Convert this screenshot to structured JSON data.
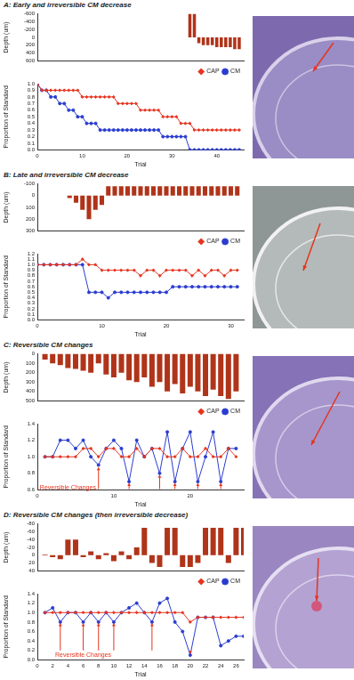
{
  "chart_data": [
    {
      "type": "bar",
      "title": "A: Early and irreversible CM decrease",
      "y_label": "Depth (um)",
      "x": [
        0,
        1,
        2,
        3,
        4,
        5,
        6,
        7,
        8,
        9,
        10,
        11,
        12,
        13,
        14,
        15,
        16,
        17,
        18,
        19,
        20,
        21,
        22,
        23,
        24,
        25,
        26,
        27,
        28,
        29,
        30,
        31,
        32,
        33,
        34,
        35,
        36,
        37,
        38,
        39,
        40,
        41,
        42,
        43,
        44,
        45
      ],
      "values": [
        0,
        0,
        0,
        0,
        0,
        0,
        0,
        0,
        0,
        0,
        0,
        0,
        0,
        0,
        0,
        0,
        0,
        0,
        0,
        0,
        0,
        0,
        0,
        0,
        0,
        0,
        0,
        0,
        0,
        0,
        0,
        0,
        0,
        0,
        -600,
        -600,
        150,
        200,
        200,
        200,
        250,
        250,
        250,
        250,
        300,
        300
      ],
      "color": "#b0341a",
      "xlim": [
        0,
        46
      ],
      "ylim": [
        600,
        -600
      ],
      "yticks": [
        -600,
        -400,
        -200,
        0,
        200,
        400,
        600
      ],
      "tick_labels": "y",
      "grid": false
    },
    {
      "type": "line",
      "x_label": "Trial",
      "y_label": "Proportion of Standard",
      "x": [
        0,
        1,
        2,
        3,
        4,
        5,
        6,
        7,
        8,
        9,
        10,
        11,
        12,
        13,
        14,
        15,
        16,
        17,
        18,
        19,
        20,
        21,
        22,
        23,
        24,
        25,
        26,
        27,
        28,
        29,
        30,
        31,
        32,
        33,
        34,
        35,
        36,
        37,
        38,
        39,
        40,
        41,
        42,
        43,
        44,
        45
      ],
      "series": [
        {
          "name": "CAP",
          "color": "#e5341f",
          "marker": "diamond",
          "values": [
            1,
            0.9,
            0.9,
            0.9,
            0.9,
            0.9,
            0.9,
            0.9,
            0.9,
            0.9,
            0.8,
            0.8,
            0.8,
            0.8,
            0.8,
            0.8,
            0.8,
            0.8,
            0.7,
            0.7,
            0.7,
            0.7,
            0.7,
            0.6,
            0.6,
            0.6,
            0.6,
            0.6,
            0.5,
            0.5,
            0.5,
            0.5,
            0.4,
            0.4,
            0.4,
            0.3,
            0.3,
            0.3,
            0.3,
            0.3,
            0.3,
            0.3,
            0.3,
            0.3,
            0.3,
            0.3
          ]
        },
        {
          "name": "CM",
          "color": "#2a3ccf",
          "marker": "circle",
          "values": [
            1,
            0.9,
            0.9,
            0.8,
            0.8,
            0.7,
            0.7,
            0.6,
            0.6,
            0.5,
            0.5,
            0.4,
            0.4,
            0.4,
            0.3,
            0.3,
            0.3,
            0.3,
            0.3,
            0.3,
            0.3,
            0.3,
            0.3,
            0.3,
            0.3,
            0.3,
            0.3,
            0.3,
            0.2,
            0.2,
            0.2,
            0.2,
            0.2,
            0.2,
            0,
            0,
            0,
            0,
            0,
            0,
            0,
            0,
            0,
            0,
            0,
            0
          ]
        }
      ],
      "xlim": [
        0,
        46
      ],
      "xticks": [
        0,
        10,
        20,
        30,
        40
      ],
      "ylim": [
        0,
        1
      ],
      "yticks": [
        {
          "value": 0,
          "label": "0.0"
        },
        0.1,
        0.2,
        0.3,
        0.4,
        0.5,
        0.6,
        0.7,
        0.8,
        0.9,
        {
          "value": 1,
          "label": "1.0"
        }
      ],
      "legend": "upper right",
      "grid": false
    },
    {
      "type": "bar",
      "title": "B: Late and irreversible CM decrease",
      "y_label": "Depth (um)",
      "x": [
        0,
        1,
        2,
        3,
        4,
        5,
        6,
        7,
        8,
        9,
        10,
        11,
        12,
        13,
        14,
        15,
        16,
        17,
        18,
        19,
        20,
        21,
        22,
        23,
        24,
        25,
        26,
        27,
        28,
        29,
        30,
        31
      ],
      "values": [
        0,
        0,
        0,
        0,
        0,
        20,
        60,
        120,
        200,
        120,
        80,
        -80,
        -80,
        -80,
        -80,
        -80,
        -80,
        -80,
        -80,
        -80,
        -80,
        -80,
        -80,
        -80,
        -80,
        -80,
        -80,
        -80,
        -80,
        -80,
        -80,
        -80
      ],
      "color": "#b0341a",
      "xlim": [
        0,
        32
      ],
      "ylim": [
        300,
        -100
      ],
      "yticks": [
        -100,
        0,
        100,
        200,
        300
      ],
      "tick_labels": "y",
      "grid": false
    },
    {
      "type": "line",
      "x_label": "Trial",
      "y_label": "Proportion of Standard",
      "x": [
        0,
        1,
        2,
        3,
        4,
        5,
        6,
        7,
        8,
        9,
        10,
        11,
        12,
        13,
        14,
        15,
        16,
        17,
        18,
        19,
        20,
        21,
        22,
        23,
        24,
        25,
        26,
        27,
        28,
        29,
        30,
        31
      ],
      "series": [
        {
          "name": "CAP",
          "color": "#e5341f",
          "marker": "diamond",
          "values": [
            1,
            1,
            1,
            1,
            1,
            1,
            1,
            1.1,
            1,
            1,
            0.9,
            0.9,
            0.9,
            0.9,
            0.9,
            0.9,
            0.8,
            0.9,
            0.9,
            0.8,
            0.9,
            0.9,
            0.9,
            0.9,
            0.8,
            0.9,
            0.8,
            0.9,
            0.9,
            0.8,
            0.9,
            0.9
          ]
        },
        {
          "name": "CM",
          "color": "#2a3ccf",
          "marker": "circle",
          "values": [
            1,
            1,
            1,
            1,
            1,
            1,
            1,
            1,
            0.5,
            0.5,
            0.5,
            0.4,
            0.5,
            0.5,
            0.5,
            0.5,
            0.5,
            0.5,
            0.5,
            0.5,
            0.5,
            0.6,
            0.6,
            0.6,
            0.6,
            0.6,
            0.6,
            0.6,
            0.6,
            0.6,
            0.6,
            0.6
          ]
        }
      ],
      "xlim": [
        0,
        32
      ],
      "xticks": [
        0,
        10,
        20,
        30
      ],
      "ylim": [
        0,
        1.2
      ],
      "yticks": [
        {
          "value": 0,
          "label": "0.0"
        },
        0.1,
        0.2,
        0.3,
        0.4,
        0.5,
        0.6,
        0.7,
        0.8,
        0.9,
        {
          "value": 1,
          "label": "1.0"
        },
        1.1,
        1.2
      ],
      "legend": "upper right",
      "grid": false
    },
    {
      "type": "bar",
      "title": "C: Reversible CM changes",
      "y_label": "Depth (um)",
      "x": [
        1,
        2,
        3,
        4,
        5,
        6,
        7,
        8,
        9,
        10,
        11,
        12,
        13,
        14,
        15,
        16,
        17,
        18,
        19,
        20,
        21,
        22,
        23,
        24,
        25,
        26
      ],
      "values": [
        60,
        100,
        120,
        150,
        160,
        180,
        200,
        100,
        220,
        250,
        200,
        280,
        300,
        250,
        350,
        300,
        400,
        320,
        420,
        350,
        400,
        450,
        380,
        450,
        480,
        400
      ],
      "color": "#b0341a",
      "xlim": [
        0,
        27
      ],
      "ylim": [
        500,
        0
      ],
      "yticks": [
        0,
        100,
        200,
        300,
        400,
        500
      ],
      "tick_labels": "y",
      "grid": false
    },
    {
      "type": "line",
      "x_label": "Trial",
      "y_label": "Proportion of Standard",
      "x": [
        1,
        2,
        3,
        4,
        5,
        6,
        7,
        8,
        9,
        10,
        11,
        12,
        13,
        14,
        15,
        16,
        17,
        18,
        19,
        20,
        21,
        22,
        23,
        24,
        25,
        26
      ],
      "series": [
        {
          "name": "CAP",
          "color": "#e5341f",
          "marker": "diamond",
          "values": [
            1,
            1,
            1,
            1,
            1,
            1.1,
            1.1,
            1,
            1.1,
            1.1,
            1,
            1,
            1.1,
            1,
            1.1,
            1.1,
            1,
            1,
            1.1,
            1,
            1,
            1.1,
            1,
            1,
            1.1,
            1
          ]
        },
        {
          "name": "CM",
          "color": "#2a3ccf",
          "marker": "circle",
          "values": [
            1,
            1,
            1.2,
            1.2,
            1.1,
            1.2,
            1,
            0.9,
            1.1,
            1.2,
            1.1,
            0.7,
            1.2,
            1,
            1.1,
            0.8,
            1.3,
            0.7,
            1.1,
            1.3,
            0.7,
            1,
            1.3,
            0.7,
            1.1,
            1.1
          ]
        }
      ],
      "xlim": [
        0,
        27
      ],
      "xticks": [
        0,
        10,
        20
      ],
      "ylim": [
        0.6,
        1.4
      ],
      "yticks": [
        0.6,
        0.8,
        {
          "value": 1,
          "label": "1.0"
        },
        1.2,
        1.4
      ],
      "legend": "upper right",
      "grid": false,
      "annotations": [
        {
          "text": "Reversible Changes",
          "color": "#e5341f",
          "x": 4,
          "y": 0.66,
          "arrows": [
            {
              "x": 8,
              "from": 0.61,
              "to": 0.87
            },
            {
              "x": 12,
              "from": 0.61,
              "to": 0.68
            },
            {
              "x": 16,
              "from": 0.61,
              "to": 0.78
            },
            {
              "x": 18,
              "from": 0.61,
              "to": 0.68
            },
            {
              "x": 21,
              "from": 0.61,
              "to": 0.68
            },
            {
              "x": 24,
              "from": 0.61,
              "to": 0.68
            }
          ]
        }
      ]
    },
    {
      "type": "bar",
      "title": "D: Reversible CM changes (then irreversible decrease)",
      "y_label": "Depth (um)",
      "x": [
        1,
        2,
        3,
        4,
        5,
        6,
        7,
        8,
        9,
        10,
        11,
        12,
        13,
        14,
        15,
        16,
        17,
        18,
        19,
        20,
        21,
        22,
        23,
        24,
        25,
        26,
        27
      ],
      "values": [
        -2,
        5,
        10,
        -40,
        -40,
        5,
        -10,
        10,
        -5,
        15,
        -10,
        10,
        -20,
        -70,
        20,
        30,
        -70,
        -70,
        30,
        30,
        20,
        -70,
        -70,
        -70,
        20,
        -70,
        -70
      ],
      "color": "#b0341a",
      "xlim": [
        0,
        27
      ],
      "ylim": [
        40,
        -80
      ],
      "yticks": [
        -80,
        -60,
        -40,
        -20,
        0,
        20,
        40
      ],
      "tick_labels": "y",
      "grid": false
    },
    {
      "type": "line",
      "x_label": "Trial",
      "y_label": "Proportion of Standard",
      "x": [
        1,
        2,
        3,
        4,
        5,
        6,
        7,
        8,
        9,
        10,
        11,
        12,
        13,
        14,
        15,
        16,
        17,
        18,
        19,
        20,
        21,
        22,
        23,
        24,
        25,
        26,
        27
      ],
      "series": [
        {
          "name": "CAP",
          "color": "#e5341f",
          "marker": "diamond",
          "values": [
            1,
            1,
            1,
            1,
            1,
            1,
            1,
            1,
            1,
            1,
            1,
            1,
            1,
            1,
            1,
            1,
            1,
            1,
            1,
            0.8,
            0.9,
            0.9,
            0.9,
            0.9,
            0.9,
            0.9,
            0.9
          ]
        },
        {
          "name": "CM",
          "color": "#2a3ccf",
          "marker": "circle",
          "values": [
            1,
            1.1,
            0.8,
            1,
            1,
            0.8,
            1,
            0.8,
            1,
            0.8,
            1,
            1.1,
            1.2,
            1,
            0.8,
            1.2,
            1.3,
            0.8,
            0.6,
            0.1,
            0.9,
            0.9,
            0.9,
            0.3,
            0.4,
            0.5,
            0.5
          ]
        }
      ],
      "xlim": [
        0,
        27
      ],
      "xticks": [
        0,
        2,
        4,
        6,
        8,
        10,
        12,
        14,
        16,
        18,
        20,
        22,
        24,
        26
      ],
      "ylim": [
        0,
        1.4
      ],
      "yticks": [
        {
          "value": 0,
          "label": "0.0"
        },
        0.2,
        0.4,
        0.6,
        0.8,
        {
          "value": 1,
          "label": "1.0"
        },
        1.2,
        1.4
      ],
      "legend": "upper right",
      "grid": false,
      "annotations": [
        {
          "text": "Reversible Changes",
          "color": "#e5341f",
          "x": 6,
          "y": 0.16,
          "arrows": [
            {
              "x": 3,
              "from": 0.2,
              "to": 0.77
            },
            {
              "x": 6,
              "from": 0.2,
              "to": 0.77
            },
            {
              "x": 8,
              "from": 0.2,
              "to": 0.77
            },
            {
              "x": 10,
              "from": 0.2,
              "to": 0.77
            },
            {
              "x": 15,
              "from": 0.2,
              "to": 0.77
            },
            {
              "x": 20,
              "from": 0.2,
              "to": 0.13
            }
          ]
        }
      ]
    }
  ]
}
